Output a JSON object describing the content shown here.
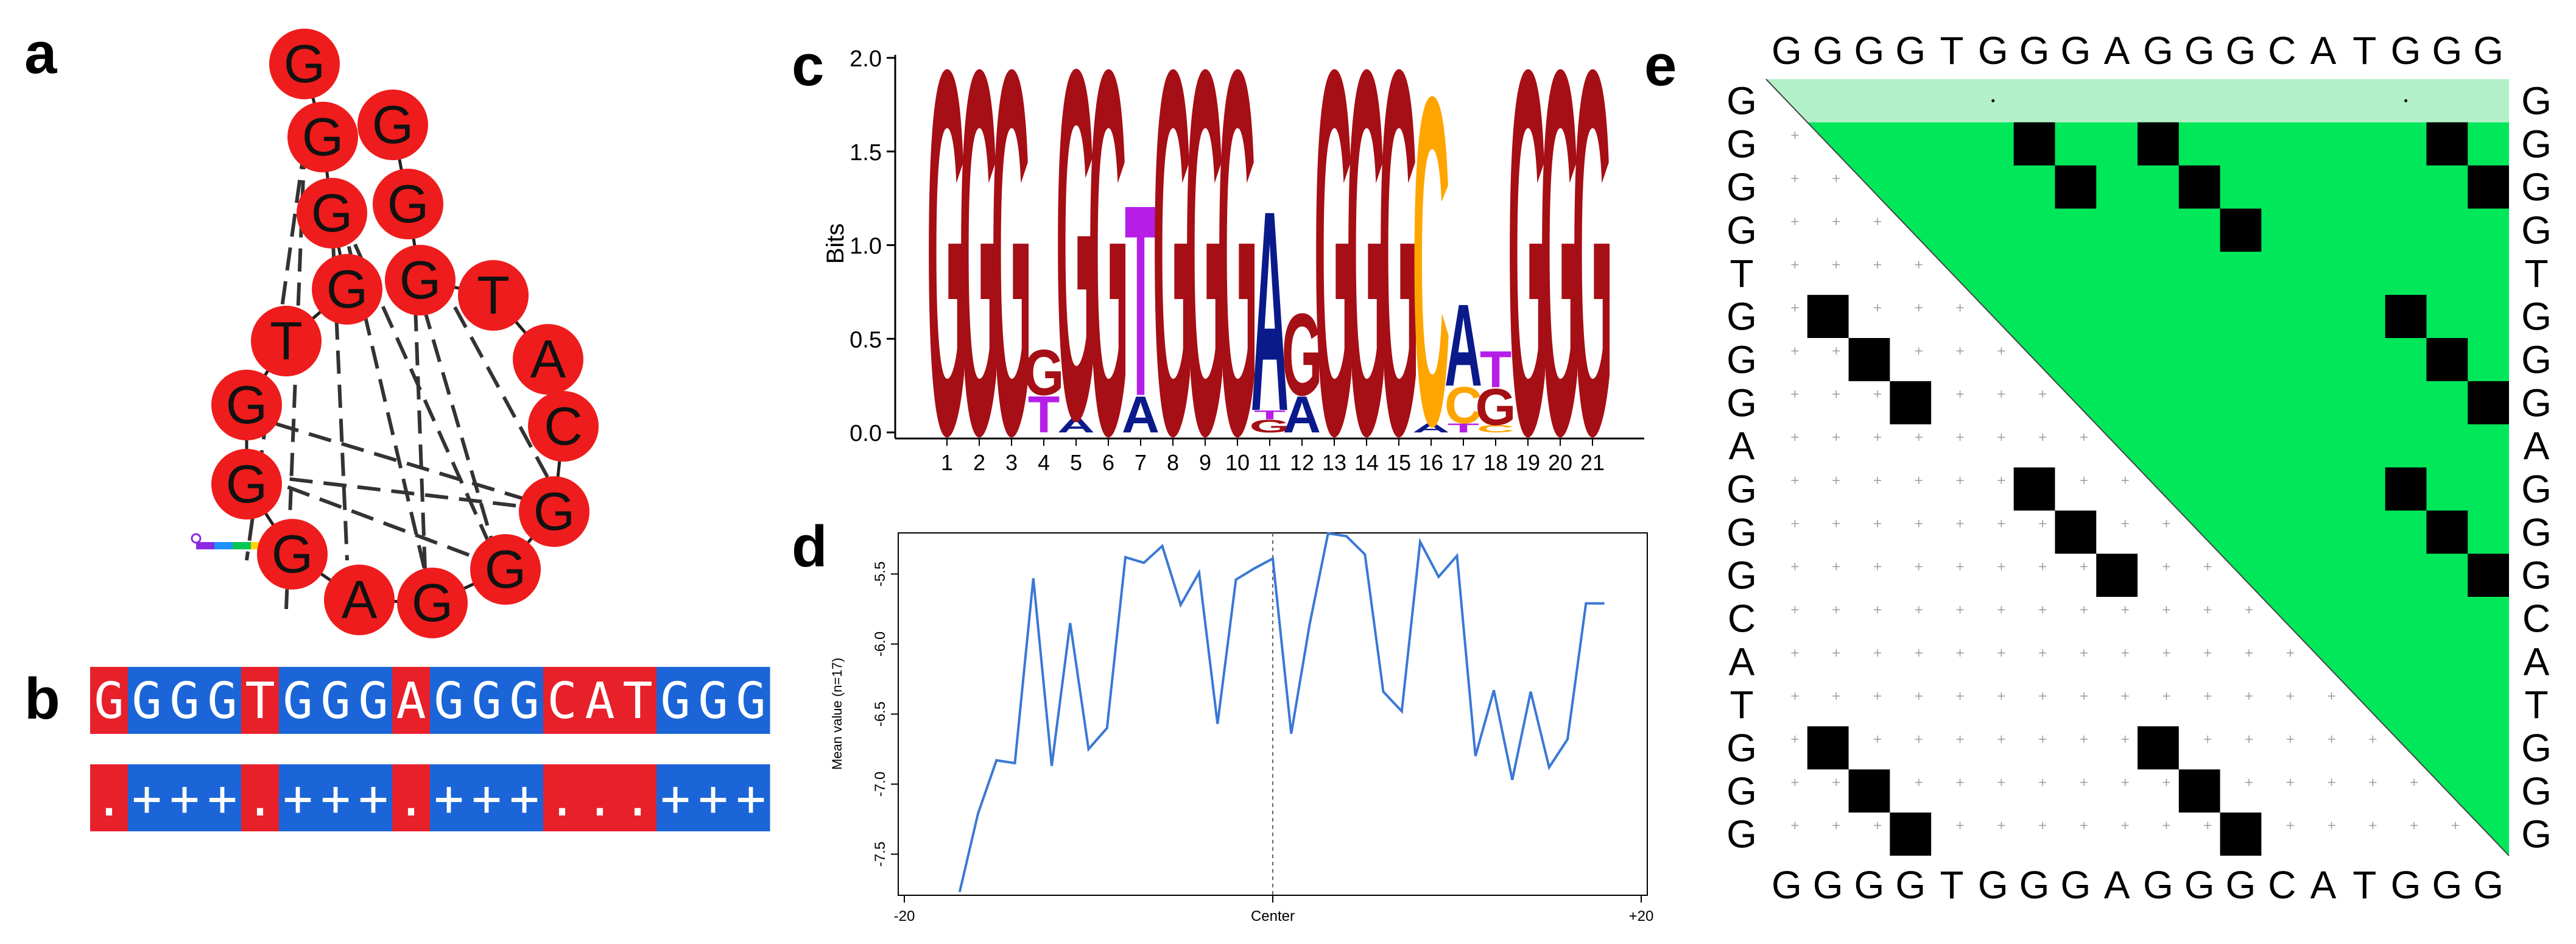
{
  "panels": {
    "a": "a",
    "b": "b",
    "c": "c",
    "d": "d",
    "e": "e"
  },
  "panel_a": {
    "nodes": [
      "G",
      "G",
      "G",
      "G",
      "G",
      "G",
      "G",
      "T",
      "G",
      "G",
      "G",
      "A",
      "G",
      "G",
      "C",
      "A",
      "T"
    ]
  },
  "panel_b": {
    "sequence": "GGGGTGGGAGGGCATGGG",
    "colors": [
      "red",
      "blue",
      "blue",
      "blue",
      "red",
      "blue",
      "blue",
      "blue",
      "red",
      "blue",
      "blue",
      "blue",
      "red",
      "red",
      "red",
      "blue",
      "blue",
      "blue"
    ],
    "pairing": [
      ".",
      "+",
      "+",
      "+",
      ".",
      "+",
      "+",
      "+",
      ".",
      "+",
      "+",
      "+",
      ".",
      ".",
      ".",
      "+",
      "+",
      "+"
    ],
    "red_color": "#e8202a",
    "blue_color": "#1b65d8"
  },
  "chart_data": [
    {
      "type": "sequence-logo",
      "ylabel": "Bits",
      "ylim": [
        0,
        2.0
      ],
      "yticks": [
        "0.0",
        "0.5",
        "1.0",
        "1.5",
        "2.0"
      ],
      "positions": [
        "1",
        "2",
        "3",
        "4",
        "5",
        "6",
        "7",
        "8",
        "9",
        "10",
        "11",
        "12",
        "13",
        "14",
        "15",
        "16",
        "17",
        "18",
        "19",
        "20",
        "21"
      ],
      "stacks": [
        [
          {
            "l": "G",
            "h": 2.0
          }
        ],
        [
          {
            "l": "G",
            "h": 2.0
          }
        ],
        [
          {
            "l": "G",
            "h": 2.0
          }
        ],
        [
          {
            "l": "T",
            "h": 0.2
          },
          {
            "l": "G",
            "h": 0.25
          }
        ],
        [
          {
            "l": "A",
            "h": 0.08
          },
          {
            "l": "G",
            "h": 1.92
          }
        ],
        [
          {
            "l": "G",
            "h": 2.0
          }
        ],
        [
          {
            "l": "A",
            "h": 0.2
          },
          {
            "l": "T",
            "h": 1.05
          }
        ],
        [
          {
            "l": "G",
            "h": 2.0
          }
        ],
        [
          {
            "l": "G",
            "h": 2.0
          }
        ],
        [
          {
            "l": "G",
            "h": 2.0
          }
        ],
        [
          {
            "l": "G",
            "h": 0.07
          },
          {
            "l": "T",
            "h": 0.05
          },
          {
            "l": "A",
            "h": 1.1
          }
        ],
        [
          {
            "l": "A",
            "h": 0.2
          },
          {
            "l": "G",
            "h": 0.45
          }
        ],
        [
          {
            "l": "G",
            "h": 2.0
          }
        ],
        [
          {
            "l": "G",
            "h": 2.0
          }
        ],
        [
          {
            "l": "G",
            "h": 2.0
          }
        ],
        [
          {
            "l": "A",
            "h": 0.05
          },
          {
            "l": "C",
            "h": 1.8
          }
        ],
        [
          {
            "l": "T",
            "h": 0.05
          },
          {
            "l": "C",
            "h": 0.2
          },
          {
            "l": "A",
            "h": 0.45
          }
        ],
        [
          {
            "l": "C",
            "h": 0.04
          },
          {
            "l": "G",
            "h": 0.2
          },
          {
            "l": "T",
            "h": 0.2
          }
        ],
        [
          {
            "l": "G",
            "h": 2.0
          }
        ],
        [
          {
            "l": "G",
            "h": 2.0
          }
        ],
        [
          {
            "l": "G",
            "h": 2.0
          }
        ]
      ]
    },
    {
      "type": "line",
      "ylabel": "Mean value (n=17)",
      "xlabel_ticks": [
        "-20",
        "Center",
        "+20"
      ],
      "xlim": [
        -20,
        20
      ],
      "ylim": [
        -7.75,
        -5.25
      ],
      "yticks": [
        "-5.5",
        "-6.0",
        "-6.5",
        "-7.0",
        "-7.5"
      ],
      "ytick_values": [
        -5.5,
        -6.0,
        -6.5,
        -7.0,
        -7.5
      ],
      "x": [
        -17,
        -16,
        -15,
        -14,
        -13,
        -12,
        -11,
        -10,
        -9,
        -8,
        -7,
        -6,
        -5,
        -4,
        -3,
        -2,
        -1,
        0,
        1,
        2,
        3,
        4,
        5,
        6,
        7,
        8,
        9,
        10,
        11,
        12,
        13,
        14,
        15,
        16,
        17,
        18
      ],
      "y": [
        -7.77,
        -7.21,
        -6.83,
        -6.85,
        -5.53,
        -6.87,
        -5.85,
        -6.75,
        -6.6,
        -5.38,
        -5.42,
        -5.3,
        -5.72,
        -5.49,
        -6.57,
        -5.54,
        -5.46,
        -5.39,
        -6.64,
        -5.86,
        -5.21,
        -5.23,
        -5.36,
        -6.34,
        -6.48,
        -5.27,
        -5.52,
        -5.37,
        -6.8,
        -6.33,
        -6.97,
        -6.34,
        -6.88,
        -6.68,
        -5.71,
        -5.71
      ]
    }
  ],
  "panel_e": {
    "sequence": [
      "G",
      "G",
      "G",
      "G",
      "T",
      "G",
      "G",
      "G",
      "A",
      "G",
      "G",
      "G",
      "C",
      "A",
      "T",
      "G",
      "G",
      "G"
    ],
    "matches": [
      [
        [
          0,
          5
        ],
        [
          1,
          6
        ],
        [
          2,
          7
        ]
      ],
      [
        [
          0,
          15
        ],
        [
          1,
          16
        ],
        [
          2,
          17
        ]
      ],
      [
        [
          5,
          15
        ],
        [
          6,
          16
        ],
        [
          7,
          17
        ]
      ],
      [
        [
          9,
          15
        ],
        [
          10,
          16
        ],
        [
          11,
          17
        ]
      ],
      [
        [
          1,
          9
        ],
        [
          2,
          10
        ],
        [
          3,
          11
        ]
      ]
    ],
    "lower_blocks": [
      [
        [
          5,
          1
        ],
        [
          6,
          2
        ],
        [
          7,
          3
        ]
      ],
      [
        [
          9,
          6
        ],
        [
          10,
          7
        ],
        [
          11,
          8
        ]
      ],
      [
        [
          15,
          1
        ],
        [
          16,
          2
        ],
        [
          17,
          3
        ]
      ],
      [
        [
          15,
          9
        ],
        [
          16,
          10
        ],
        [
          17,
          11
        ]
      ]
    ],
    "triangle_color": "#00e85a",
    "band_color": "#b2f0c8"
  }
}
